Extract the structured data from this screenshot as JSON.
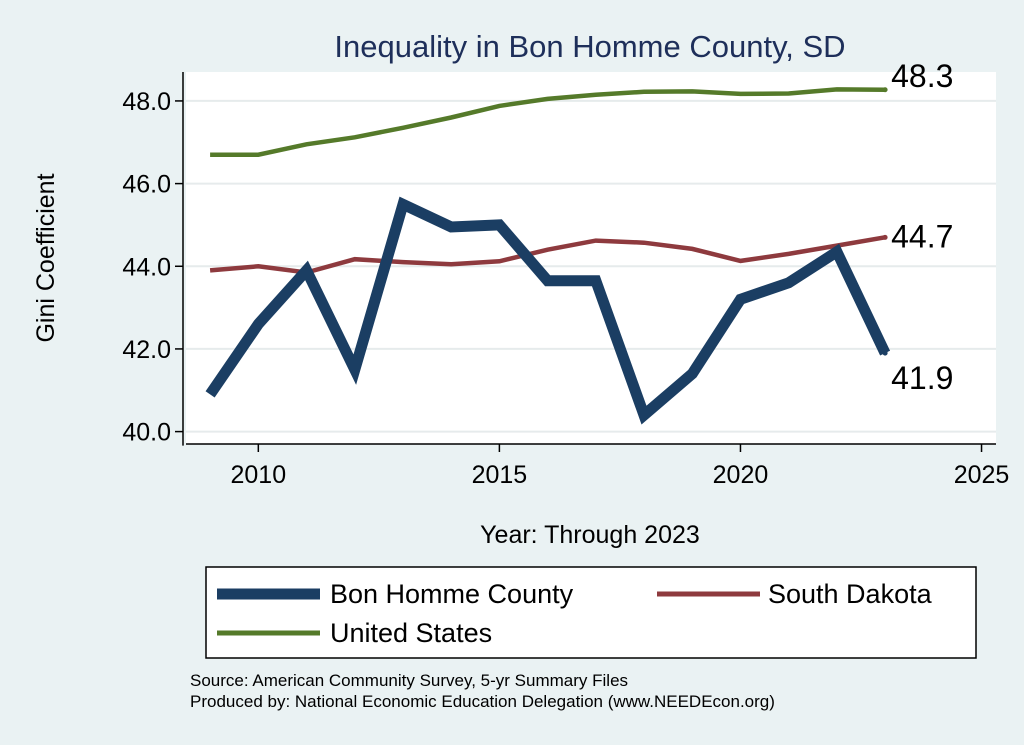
{
  "chart_data": {
    "type": "line",
    "title": "Inequality in Bon Homme County, SD",
    "xlabel": "Year: Through 2023",
    "ylabel": "Gini Coefficient",
    "xlim": [
      2008.5,
      2025.3
    ],
    "ylim": [
      39.7,
      48.7
    ],
    "x_ticks": [
      2010,
      2015,
      2020,
      2025
    ],
    "y_ticks": [
      40.0,
      42.0,
      44.0,
      46.0,
      48.0
    ],
    "y_tick_labels": [
      "40.0",
      "42.0",
      "44.0",
      "46.0",
      "48.0"
    ],
    "grid": true,
    "legend_position": "bottom",
    "x": [
      2009,
      2010,
      2011,
      2012,
      2013,
      2014,
      2015,
      2016,
      2017,
      2018,
      2019,
      2020,
      2021,
      2022,
      2023
    ],
    "series": [
      {
        "name": "Bon Homme County",
        "color": "#1b3e63",
        "values": [
          40.9,
          42.6,
          43.9,
          41.5,
          45.5,
          44.95,
          45.0,
          43.65,
          43.65,
          40.4,
          41.4,
          43.2,
          43.6,
          44.35,
          41.9
        ],
        "end_label": "41.9"
      },
      {
        "name": "South Dakota",
        "color": "#8e3a3e",
        "values": [
          43.9,
          44.0,
          43.85,
          44.17,
          44.1,
          44.05,
          44.12,
          44.4,
          44.62,
          44.57,
          44.42,
          44.13,
          44.3,
          44.5,
          44.7
        ],
        "end_label": "44.7"
      },
      {
        "name": "United States",
        "color": "#557a2a",
        "values": [
          46.7,
          46.7,
          46.95,
          47.12,
          47.35,
          47.6,
          47.88,
          48.05,
          48.15,
          48.22,
          48.23,
          48.17,
          48.18,
          48.28,
          48.27
        ],
        "end_label": "48.3"
      }
    ],
    "source_lines": [
      "Source: American Community Survey, 5-yr Summary Files",
      "Produced by: National Economic Education Delegation (www.NEEDEcon.org)"
    ]
  }
}
